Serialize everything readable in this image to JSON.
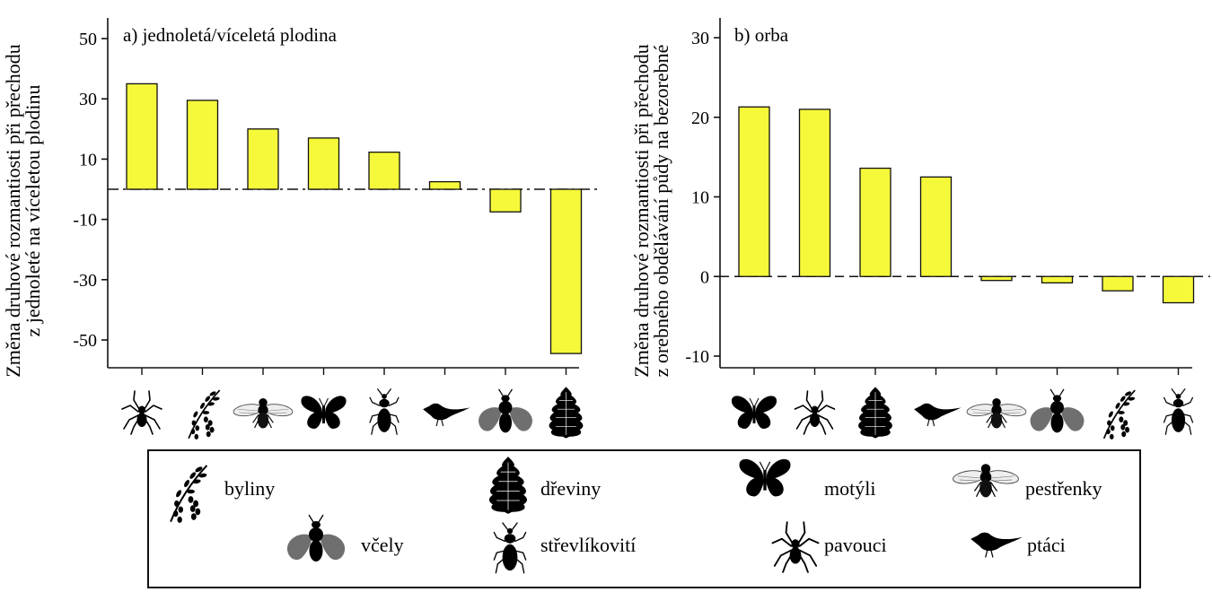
{
  "colors": {
    "bar_fill": "#f6f93a",
    "bar_stroke": "#111111",
    "icon": "#000000",
    "icon_grey": "#6f6f6f"
  },
  "chart_data": [
    {
      "type": "bar",
      "title": "a) jednoletá/víceletá plodina",
      "ylabel": [
        "Změna druhové rozmantiosti při přechodu",
        "z jednoleté na víceletou plodinu"
      ],
      "xlabel": "",
      "ylim": [
        -60,
        60
      ],
      "yticks": [
        50,
        30,
        10,
        -10,
        -30,
        -50
      ],
      "reference_line": 0,
      "categories": [
        "pavouci",
        "byliny",
        "pestřenky",
        "motýli",
        "střevlíkovití",
        "ptáci",
        "včely",
        "dřeviny"
      ],
      "values": [
        35,
        29.5,
        20,
        17,
        12.3,
        2.5,
        -7.5,
        -54.5
      ]
    },
    {
      "type": "bar",
      "title": "b) orba",
      "ylabel": [
        "Změna druhové rozmantiosti při přechodu",
        "z orebného obdělávání půdy na bezorebné"
      ],
      "xlabel": "",
      "ylim": [
        -11,
        31
      ],
      "yticks": [
        30,
        20,
        10,
        0,
        -10
      ],
      "reference_line": 0,
      "categories": [
        "motýli",
        "pavouci",
        "dřeviny",
        "ptáci",
        "pestřenky",
        "včely",
        "byliny",
        "střevlíkovití"
      ],
      "values": [
        21.3,
        21,
        13.6,
        12.5,
        -0.5,
        -0.8,
        -1.8,
        -3.3
      ]
    }
  ],
  "legend": [
    {
      "icon": "herb-icon",
      "label": "byliny"
    },
    {
      "icon": "tree-icon",
      "label": "dřeviny"
    },
    {
      "icon": "butterfly-icon",
      "label": "motýli"
    },
    {
      "icon": "hoverfly-icon",
      "label": "pestřenky"
    },
    {
      "icon": "bee-icon",
      "label": "včely"
    },
    {
      "icon": "beetle-icon",
      "label": "střevlíkovití"
    },
    {
      "icon": "spider-icon",
      "label": "pavouci"
    },
    {
      "icon": "bird-icon",
      "label": "ptáci"
    }
  ]
}
